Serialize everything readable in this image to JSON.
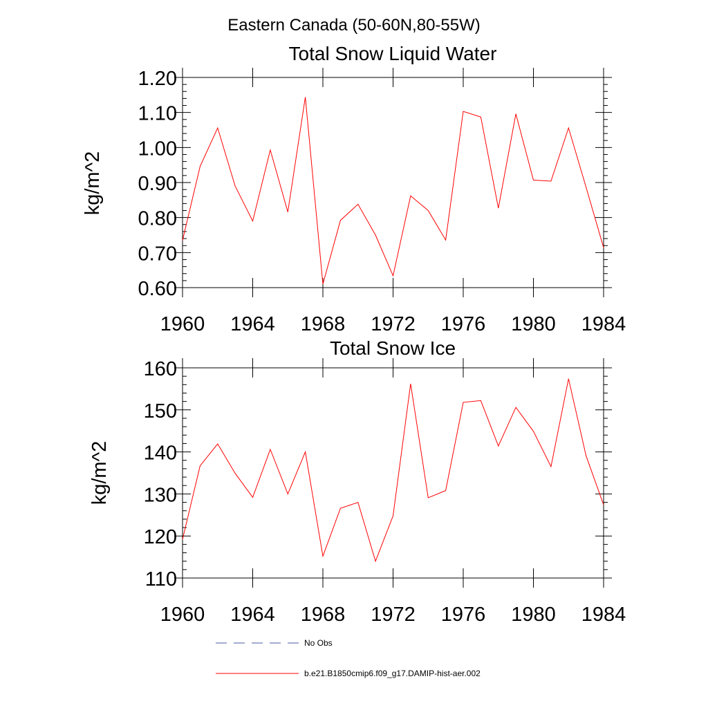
{
  "figure": {
    "title": "Eastern Canada (50-60N,80-55W)"
  },
  "chart_data": [
    {
      "type": "line",
      "title": "Total Snow Liquid Water",
      "xlabel": "",
      "ylabel": "kg/m^2",
      "xlim": [
        1960,
        1984
      ],
      "ylim": [
        0.6,
        1.2
      ],
      "xticks": [
        1960,
        1964,
        1968,
        1972,
        1976,
        1980,
        1984
      ],
      "xtick_labels": [
        "1960",
        "1964",
        "1968",
        "1972",
        "1976",
        "1980",
        "1984"
      ],
      "yticks": [
        0.6,
        0.7,
        0.8,
        0.9,
        1.0,
        1.1,
        1.2
      ],
      "ytick_labels": [
        "0.60",
        "0.70",
        "0.80",
        "0.90",
        "1.00",
        "1.10",
        "1.20"
      ],
      "grid": false,
      "series": [
        {
          "name": "b.e21.B1850cmip6.f09_g17.DAMIP-hist-aer.002",
          "color": "#ff0000",
          "x": [
            1960,
            1961,
            1962,
            1963,
            1964,
            1965,
            1966,
            1967,
            1968,
            1969,
            1970,
            1971,
            1972,
            1973,
            1974,
            1975,
            1976,
            1977,
            1978,
            1979,
            1980,
            1981,
            1982,
            1983,
            1984
          ],
          "y": [
            0.735,
            0.946,
            1.056,
            0.89,
            0.79,
            0.993,
            0.816,
            1.144,
            0.61,
            0.792,
            0.838,
            0.75,
            0.634,
            0.862,
            0.82,
            0.736,
            1.103,
            1.087,
            0.827,
            1.096,
            0.907,
            0.904,
            1.056,
            0.887,
            0.714
          ]
        }
      ]
    },
    {
      "type": "line",
      "title": "Total Snow Ice",
      "xlabel": "",
      "ylabel": "kg/m^2",
      "xlim": [
        1960,
        1984
      ],
      "ylim": [
        110,
        160
      ],
      "xticks": [
        1960,
        1964,
        1968,
        1972,
        1976,
        1980,
        1984
      ],
      "xtick_labels": [
        "1960",
        "1964",
        "1968",
        "1972",
        "1976",
        "1980",
        "1984"
      ],
      "yticks": [
        110,
        120,
        130,
        140,
        150,
        160
      ],
      "ytick_labels": [
        "110",
        "120",
        "130",
        "140",
        "150",
        "160"
      ],
      "grid": false,
      "series": [
        {
          "name": "b.e21.B1850cmip6.f09_g17.DAMIP-hist-aer.002",
          "color": "#ff0000",
          "x": [
            1960,
            1961,
            1962,
            1963,
            1964,
            1965,
            1966,
            1967,
            1968,
            1969,
            1970,
            1971,
            1972,
            1973,
            1974,
            1975,
            1976,
            1977,
            1978,
            1979,
            1980,
            1981,
            1982,
            1983,
            1984
          ],
          "y": [
            119.2,
            136.7,
            141.9,
            134.9,
            129.2,
            140.6,
            130.0,
            140.0,
            115.2,
            126.6,
            128.0,
            114.0,
            124.8,
            156.2,
            129.1,
            130.8,
            151.8,
            152.2,
            141.4,
            150.6,
            144.9,
            136.5,
            157.4,
            139.1,
            127.4
          ]
        }
      ]
    }
  ],
  "legend": {
    "placement": "bottom",
    "items": [
      {
        "label": "No Obs",
        "color": "#4a5aa0",
        "style": "dashed"
      },
      {
        "label": "b.e21.B1850cmip6.f09_g17.DAMIP-hist-aer.002",
        "color": "#ff0000",
        "style": "solid"
      }
    ]
  }
}
